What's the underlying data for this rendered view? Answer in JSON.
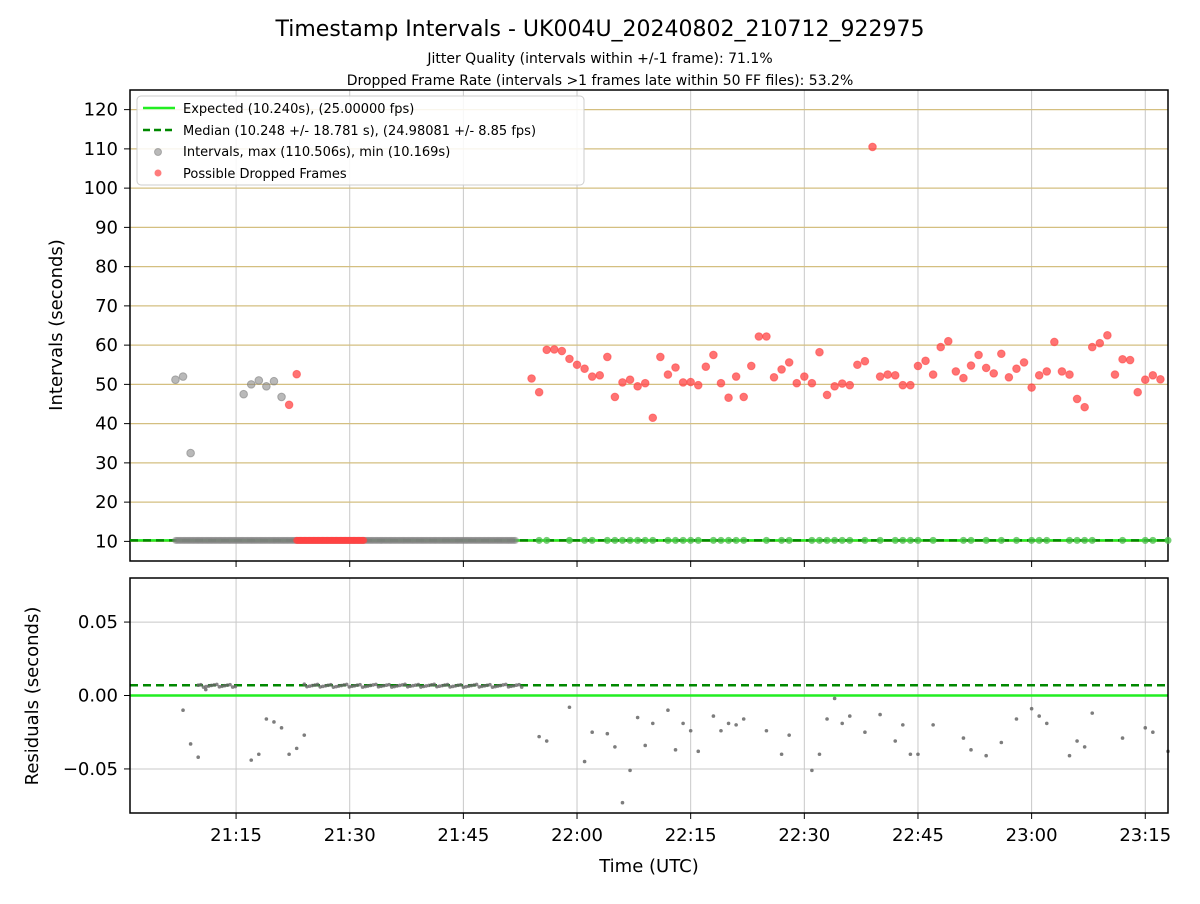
{
  "figure": {
    "title": "Timestamp Intervals - UK004U_20240802_210712_922975",
    "subtitle_1": "Jitter Quality (intervals within +/-1 frame): 71.1%",
    "subtitle_2": "Dropped Frame Rate (intervals >1 frames late within 50 FF files): 53.2%"
  },
  "colors": {
    "expected": "#22ee22",
    "median": "#008800",
    "intervals": "#808080",
    "dropped": "#ff4444",
    "gridline_top": "#d4bf80",
    "gridline": "#c8c8c8",
    "residual_points": "#666666"
  },
  "chart_data": [
    {
      "type": "scatter",
      "panel": "top",
      "xlabel": "",
      "ylabel": "Intervals (seconds)",
      "xlim": [
        "21:01",
        "23:18"
      ],
      "ylim": [
        5,
        125
      ],
      "yticks": [
        10,
        20,
        30,
        40,
        50,
        60,
        70,
        80,
        90,
        100,
        110,
        120
      ],
      "xticks": [
        "21:15",
        "21:30",
        "21:45",
        "22:00",
        "22:15",
        "22:30",
        "22:45",
        "23:00",
        "23:15"
      ],
      "grid": true,
      "legend_position": "upper-left",
      "legend": [
        {
          "label": "Expected (10.240s), (25.00000 fps)",
          "style": "solid-line",
          "color": "#22ee22"
        },
        {
          "label": "Median (10.248 +/- 18.781 s), (24.98081 +/- 8.85 fps)",
          "style": "dashed-line",
          "color": "#008800"
        },
        {
          "label": "Intervals, max (110.506s), min (10.169s)",
          "style": "dot",
          "color": "#808080"
        },
        {
          "label": "Possible Dropped Frames",
          "style": "dot",
          "color": "#ff4444"
        }
      ],
      "expected_value": 10.24,
      "median_value": 10.248,
      "series": [
        {
          "name": "Intervals, max (110.506s), min (10.169s)",
          "points": [
            [
              "21:07",
              51.2
            ],
            [
              "21:08",
              52.0
            ],
            [
              "21:09",
              32.5
            ],
            [
              "21:16",
              47.5
            ],
            [
              "21:17",
              50.0
            ],
            [
              "21:18",
              51.0
            ],
            [
              "21:19",
              49.5
            ],
            [
              "21:20",
              50.8
            ],
            [
              "21:21",
              46.8
            ]
          ]
        },
        {
          "name": "Possible Dropped Frames",
          "points": [
            [
              "21:22",
              44.8
            ],
            [
              "21:23",
              52.6
            ],
            [
              "21:54",
              51.5
            ],
            [
              "21:55",
              48.0
            ],
            [
              "21:56",
              58.8
            ],
            [
              "21:57",
              58.9
            ],
            [
              "21:58",
              58.5
            ],
            [
              "21:59",
              56.5
            ],
            [
              "22:00",
              55.0
            ],
            [
              "22:01",
              54.0
            ],
            [
              "22:02",
              52.0
            ],
            [
              "22:03",
              52.3
            ],
            [
              "22:04",
              57.0
            ],
            [
              "22:05",
              46.8
            ],
            [
              "22:06",
              50.5
            ],
            [
              "22:07",
              51.2
            ],
            [
              "22:08",
              49.5
            ],
            [
              "22:09",
              50.3
            ],
            [
              "22:10",
              41.5
            ],
            [
              "22:11",
              57.0
            ],
            [
              "22:12",
              52.5
            ],
            [
              "22:13",
              54.3
            ],
            [
              "22:14",
              50.5
            ],
            [
              "22:15",
              50.6
            ],
            [
              "22:16",
              49.8
            ],
            [
              "22:17",
              54.5
            ],
            [
              "22:18",
              57.5
            ],
            [
              "22:19",
              50.3
            ],
            [
              "22:20",
              46.6
            ],
            [
              "22:21",
              52.0
            ],
            [
              "22:22",
              46.8
            ],
            [
              "22:23",
              54.7
            ],
            [
              "22:24",
              62.2
            ],
            [
              "22:25",
              62.2
            ],
            [
              "22:26",
              51.8
            ],
            [
              "22:27",
              53.8
            ],
            [
              "22:28",
              55.6
            ],
            [
              "22:29",
              50.3
            ],
            [
              "22:30",
              52.0
            ],
            [
              "22:31",
              50.3
            ],
            [
              "22:32",
              58.2
            ],
            [
              "22:33",
              47.3
            ],
            [
              "22:34",
              49.5
            ],
            [
              "22:35",
              50.2
            ],
            [
              "22:36",
              49.8
            ],
            [
              "22:37",
              55.0
            ],
            [
              "22:38",
              55.9
            ],
            [
              "22:39",
              110.5
            ],
            [
              "22:40",
              52.0
            ],
            [
              "22:41",
              52.5
            ],
            [
              "22:42",
              52.3
            ],
            [
              "22:43",
              49.8
            ],
            [
              "22:44",
              49.8
            ],
            [
              "22:45",
              54.7
            ],
            [
              "22:46",
              56.0
            ],
            [
              "22:47",
              52.5
            ],
            [
              "22:48",
              59.5
            ],
            [
              "22:49",
              61.0
            ],
            [
              "22:50",
              53.3
            ],
            [
              "22:51",
              51.6
            ],
            [
              "22:52",
              54.8
            ],
            [
              "22:53",
              57.5
            ],
            [
              "22:54",
              54.2
            ],
            [
              "22:55",
              52.8
            ],
            [
              "22:56",
              57.8
            ],
            [
              "22:57",
              51.8
            ],
            [
              "22:58",
              54.0
            ],
            [
              "22:59",
              55.6
            ],
            [
              "23:00",
              49.2
            ],
            [
              "23:01",
              52.3
            ],
            [
              "23:02",
              53.3
            ],
            [
              "23:03",
              60.8
            ],
            [
              "23:04",
              53.3
            ],
            [
              "23:05",
              52.5
            ],
            [
              "23:06",
              46.3
            ],
            [
              "23:07",
              44.2
            ],
            [
              "23:08",
              59.5
            ],
            [
              "23:09",
              60.5
            ],
            [
              "23:10",
              62.5
            ],
            [
              "23:11",
              52.5
            ],
            [
              "23:12",
              56.4
            ],
            [
              "23:13",
              56.2
            ],
            [
              "23:14",
              48.0
            ],
            [
              "23:15",
              51.2
            ],
            [
              "23:16",
              52.3
            ],
            [
              "23:17",
              51.3
            ]
          ]
        }
      ]
    },
    {
      "type": "scatter",
      "panel": "bottom",
      "xlabel": "Time (UTC)",
      "ylabel": "Residuals (seconds)",
      "xlim": [
        "21:01",
        "23:18"
      ],
      "ylim": [
        -0.08,
        0.08
      ],
      "yticks": [
        0.05,
        0.0,
        -0.05
      ],
      "ytick_labels": [
        "0.05",
        "0.00",
        "−0.05"
      ],
      "xticks": [
        "21:15",
        "21:30",
        "21:45",
        "22:00",
        "22:15",
        "22:30",
        "22:45",
        "23:00",
        "23:15"
      ],
      "grid": true,
      "expected_value": 0.0,
      "median_value": 0.007,
      "points": [
        [
          "21:08",
          -0.01
        ],
        [
          "21:09",
          -0.033
        ],
        [
          "21:10",
          -0.042
        ],
        [
          "21:11",
          0.004
        ],
        [
          "21:17",
          -0.044
        ],
        [
          "21:18",
          -0.04
        ],
        [
          "21:19",
          -0.016
        ],
        [
          "21:20",
          -0.018
        ],
        [
          "21:21",
          -0.022
        ],
        [
          "21:22",
          -0.04
        ],
        [
          "21:23",
          -0.036
        ],
        [
          "21:24",
          -0.027
        ],
        [
          "21:55",
          -0.028
        ],
        [
          "21:56",
          -0.031
        ],
        [
          "21:59",
          -0.008
        ],
        [
          "22:01",
          -0.045
        ],
        [
          "22:02",
          -0.025
        ],
        [
          "22:04",
          -0.026
        ],
        [
          "22:05",
          -0.035
        ],
        [
          "22:06",
          -0.073
        ],
        [
          "22:07",
          -0.051
        ],
        [
          "22:08",
          -0.015
        ],
        [
          "22:09",
          -0.034
        ],
        [
          "22:10",
          -0.019
        ],
        [
          "22:12",
          -0.01
        ],
        [
          "22:13",
          -0.037
        ],
        [
          "22:14",
          -0.019
        ],
        [
          "22:15",
          -0.024
        ],
        [
          "22:16",
          -0.038
        ],
        [
          "22:18",
          -0.014
        ],
        [
          "22:19",
          -0.024
        ],
        [
          "22:20",
          -0.019
        ],
        [
          "22:21",
          -0.02
        ],
        [
          "22:22",
          -0.016
        ],
        [
          "22:25",
          -0.024
        ],
        [
          "22:27",
          -0.04
        ],
        [
          "22:28",
          -0.027
        ],
        [
          "22:31",
          -0.051
        ],
        [
          "22:32",
          -0.04
        ],
        [
          "22:33",
          -0.016
        ],
        [
          "22:34",
          -0.002
        ],
        [
          "22:35",
          -0.019
        ],
        [
          "22:36",
          -0.014
        ],
        [
          "22:38",
          -0.025
        ],
        [
          "22:40",
          -0.013
        ],
        [
          "22:42",
          -0.031
        ],
        [
          "22:43",
          -0.02
        ],
        [
          "22:44",
          -0.04
        ],
        [
          "22:45",
          -0.04
        ],
        [
          "22:47",
          -0.02
        ],
        [
          "22:51",
          -0.029
        ],
        [
          "22:52",
          -0.037
        ],
        [
          "22:54",
          -0.041
        ],
        [
          "22:56",
          -0.032
        ],
        [
          "22:58",
          -0.016
        ],
        [
          "23:00",
          -0.009
        ],
        [
          "23:01",
          -0.014
        ],
        [
          "23:02",
          -0.019
        ],
        [
          "23:05",
          -0.041
        ],
        [
          "23:06",
          -0.031
        ],
        [
          "23:07",
          -0.035
        ],
        [
          "23:08",
          -0.012
        ],
        [
          "23:12",
          -0.029
        ],
        [
          "23:15",
          -0.022
        ],
        [
          "23:16",
          -0.025
        ],
        [
          "23:18",
          -0.038
        ]
      ]
    }
  ]
}
